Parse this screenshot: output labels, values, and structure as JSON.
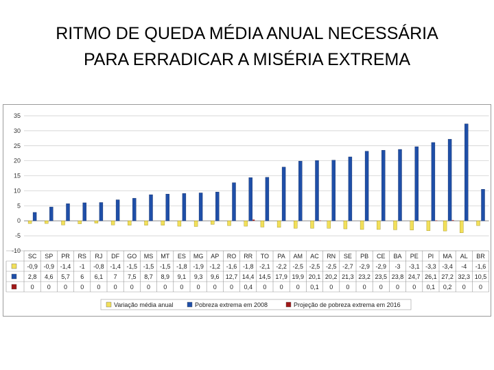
{
  "slide": {
    "title_line1": "RITMO DE QUEDA MÉDIA ANUAL NECESSÁRIA",
    "title_line2": "PARA ERRADICAR A MISÉRIA EXTREMA"
  },
  "colors": {
    "series_yellow": "#f2e05a",
    "series_blue": "#1f4fa8",
    "series_red": "#a01818",
    "grid": "#c8c8c8"
  },
  "chart_data": {
    "type": "bar",
    "categories": [
      "SC",
      "SP",
      "PR",
      "RS",
      "RJ",
      "DF",
      "GO",
      "MS",
      "MT",
      "ES",
      "MG",
      "AP",
      "RO",
      "RR",
      "TO",
      "PA",
      "AM",
      "AC",
      "RN",
      "SE",
      "PB",
      "CE",
      "BA",
      "PE",
      "PI",
      "MA",
      "AL",
      "BR"
    ],
    "ylim": [
      -10,
      35
    ],
    "yticks": [
      35,
      30,
      25,
      20,
      15,
      10,
      5,
      0,
      -5,
      -10
    ],
    "grid": true,
    "legend_position": "bottom",
    "series": [
      {
        "name": "Variação média anual",
        "color": "#f2e05a",
        "values": [
          -0.9,
          -0.9,
          -1.4,
          -1,
          -0.8,
          -1.4,
          -1.5,
          -1.5,
          -1.5,
          -1.8,
          -1.9,
          -1.2,
          -1.6,
          -1.8,
          -2.1,
          -2.2,
          -2.5,
          -2.5,
          -2.5,
          -2.7,
          -2.9,
          -2.9,
          -3,
          -3.1,
          -3.3,
          -3.4,
          -4,
          -1.6
        ],
        "labels": [
          "-0,9",
          "-0,9",
          "-1,4",
          "-1",
          "-0,8",
          "-1,4",
          "-1,5",
          "-1,5",
          "-1,5",
          "-1,8",
          "-1,9",
          "-1,2",
          "-1,6",
          "-1,8",
          "-2,1",
          "-2,2",
          "-2,5",
          "-2,5",
          "-2,5",
          "-2,7",
          "-2,9",
          "-2,9",
          "-3",
          "-3,1",
          "-3,3",
          "-3,4",
          "-4",
          "-1,6"
        ]
      },
      {
        "name": "Pobreza extrema em 2008",
        "color": "#1f4fa8",
        "values": [
          2.8,
          4.6,
          5.7,
          6,
          6.1,
          7,
          7.5,
          8.7,
          8.9,
          9.1,
          9.3,
          9.6,
          12.7,
          14.4,
          14.5,
          17.9,
          19.9,
          20.1,
          20.2,
          21.3,
          23.2,
          23.5,
          23.8,
          24.7,
          26.1,
          27.2,
          32.3,
          10.5
        ],
        "labels": [
          "2,8",
          "4,6",
          "5,7",
          "6",
          "6,1",
          "7",
          "7,5",
          "8,7",
          "8,9",
          "9,1",
          "9,3",
          "9,6",
          "12,7",
          "14,4",
          "14,5",
          "17,9",
          "19,9",
          "20,1",
          "20,2",
          "21,3",
          "23,2",
          "23,5",
          "23,8",
          "24,7",
          "26,1",
          "27,2",
          "32,3",
          "10,5"
        ]
      },
      {
        "name": "Projeção de pobreza extrema em 2016",
        "color": "#a01818",
        "values": [
          0,
          0,
          0,
          0,
          0,
          0,
          0,
          0,
          0,
          0,
          0,
          0,
          0,
          0.4,
          0,
          0,
          0,
          0.1,
          0,
          0,
          0,
          0,
          0,
          0,
          0.1,
          0.2,
          0,
          0
        ],
        "labels": [
          "0",
          "0",
          "0",
          "0",
          "0",
          "0",
          "0",
          "0",
          "0",
          "0",
          "0",
          "0",
          "0",
          "0,4",
          "0",
          "0",
          "0",
          "0,1",
          "0",
          "0",
          "0",
          "0",
          "0",
          "0",
          "0,1",
          "0,2",
          "0",
          "0"
        ]
      }
    ]
  }
}
